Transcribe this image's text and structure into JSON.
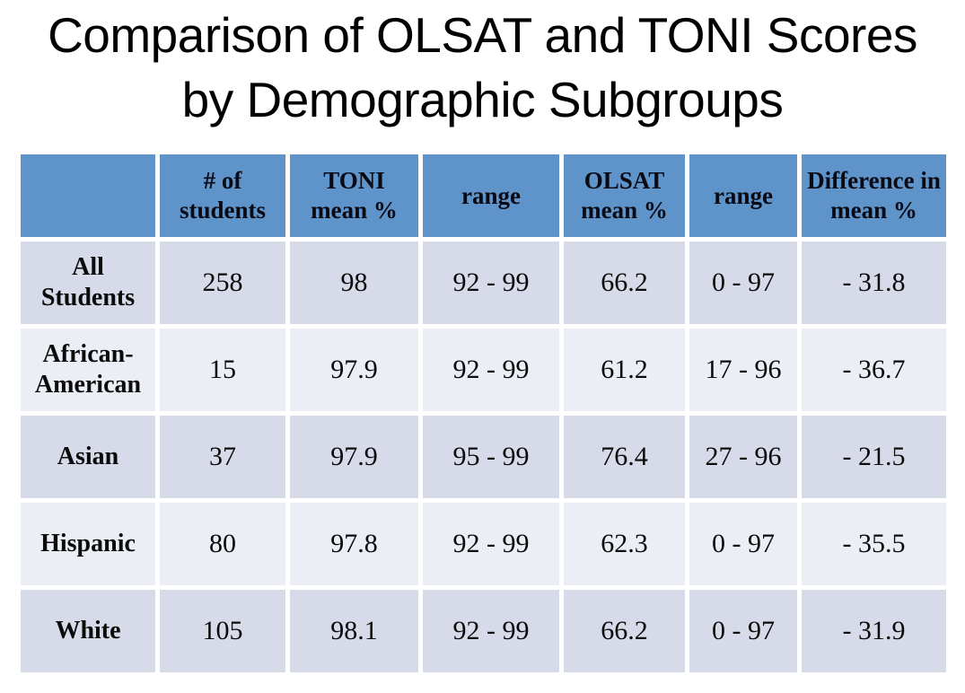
{
  "title": {
    "line1": "Comparison of OLSAT and TONI Scores",
    "line2": "by Demographic Subgroups"
  },
  "colors": {
    "page_bg": "#ffffff",
    "header_bg": "#5e94c9",
    "row_dark": "#d7dbe9",
    "row_light": "#eceef5",
    "text": "#0b0b0b"
  },
  "table": {
    "headers": [
      "",
      "# of students",
      "TONI mean %",
      "range",
      "OLSAT mean %",
      "range",
      "Difference in mean %"
    ],
    "rows": [
      {
        "label": "All Students",
        "values": [
          "258",
          "98",
          "92 - 99",
          "66.2",
          "0 - 97",
          "- 31.8"
        ]
      },
      {
        "label": "African-American",
        "values": [
          "15",
          "97.9",
          "92 - 99",
          "61.2",
          "17 - 96",
          "- 36.7"
        ]
      },
      {
        "label": "Asian",
        "values": [
          "37",
          "97.9",
          "95 - 99",
          "76.4",
          "27 - 96",
          "- 21.5"
        ]
      },
      {
        "label": "Hispanic",
        "values": [
          "80",
          "97.8",
          "92 - 99",
          "62.3",
          "0 - 97",
          "- 35.5"
        ]
      },
      {
        "label": "White",
        "values": [
          "105",
          "98.1",
          "92 - 99",
          "66.2",
          "0 - 97",
          "- 31.9"
        ]
      }
    ]
  },
  "chart_data": {
    "type": "table",
    "title": "Comparison of OLSAT and TONI Scores by Demographic Subgroups",
    "columns": [
      "",
      "# of students",
      "TONI mean %",
      "range",
      "OLSAT mean %",
      "range",
      "Difference in mean %"
    ],
    "rows": [
      [
        "All Students",
        258,
        98,
        "92 - 99",
        66.2,
        "0 - 97",
        -31.8
      ],
      [
        "African-American",
        15,
        97.9,
        "92 - 99",
        61.2,
        "17 - 96",
        -36.7
      ],
      [
        "Asian",
        37,
        97.9,
        "95 - 99",
        76.4,
        "27 - 96",
        -21.5
      ],
      [
        "Hispanic",
        80,
        97.8,
        "92 - 99",
        62.3,
        "0 - 97",
        -35.5
      ],
      [
        "White",
        105,
        98.1,
        "92 - 99",
        66.2,
        "0 - 97",
        -31.9
      ]
    ],
    "layout": {
      "header_fill": "#5e94c9",
      "banded_rows": true,
      "band_colors": [
        "#d7dbe9",
        "#eceef5"
      ]
    }
  }
}
